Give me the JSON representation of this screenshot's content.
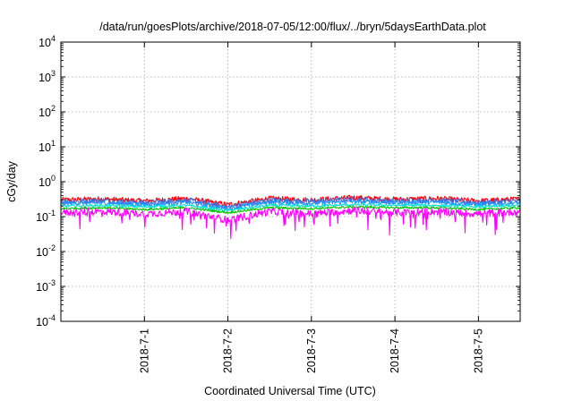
{
  "chart_data": {
    "type": "line",
    "title": "/data/run/goesPlots/archive/2018-07-05/12:00/flux/../bryn/5daysEarthData.plot",
    "xlabel": "Coordinated Universal Time (UTC)",
    "ylabel": "cGy/day",
    "yscale": "log",
    "ylim": [
      0.0001,
      10000
    ],
    "y_ticks": [
      {
        "value": 0.0001,
        "base": "10",
        "exp": "-4"
      },
      {
        "value": 0.001,
        "base": "10",
        "exp": "-3"
      },
      {
        "value": 0.01,
        "base": "10",
        "exp": "-2"
      },
      {
        "value": 0.1,
        "base": "10",
        "exp": "-1"
      },
      {
        "value": 1,
        "base": "10",
        "exp": "0"
      },
      {
        "value": 10,
        "base": "10",
        "exp": "1"
      },
      {
        "value": 100,
        "base": "10",
        "exp": "2"
      },
      {
        "value": 1000,
        "base": "10",
        "exp": "3"
      },
      {
        "value": 10000,
        "base": "10",
        "exp": "4"
      }
    ],
    "xlim": [
      "2018-06-30 00:00",
      "2018-07-05 12:00"
    ],
    "x_ticks": [
      {
        "date": "2018-07-01 00:00",
        "label": "2018-7-1"
      },
      {
        "date": "2018-07-02 00:00",
        "label": "2018-7-2"
      },
      {
        "date": "2018-07-03 00:00",
        "label": "2018-7-3"
      },
      {
        "date": "2018-07-04 00:00",
        "label": "2018-7-4"
      },
      {
        "date": "2018-07-05 00:00",
        "label": "2018-7-5"
      }
    ],
    "grid": true,
    "legend": "none",
    "series": [
      {
        "color": "#ff0000",
        "base": 0.34,
        "spread": 0.25,
        "x": [
          "2018-06-30 00:00",
          "2018-06-30 12:00",
          "2018-07-01 00:00",
          "2018-07-01 12:00",
          "2018-07-02 00:00",
          "2018-07-02 12:00",
          "2018-07-03 00:00",
          "2018-07-03 12:00",
          "2018-07-04 00:00",
          "2018-07-04 12:00",
          "2018-07-05 00:00",
          "2018-07-05 12:00"
        ],
        "y": [
          0.3,
          0.32,
          0.28,
          0.33,
          0.22,
          0.33,
          0.3,
          0.35,
          0.31,
          0.33,
          0.28,
          0.32
        ]
      },
      {
        "color": "#4a6cd4",
        "base": 0.3,
        "spread": 0.25,
        "x": [
          "2018-06-30 00:00",
          "2018-06-30 12:00",
          "2018-07-01 00:00",
          "2018-07-01 12:00",
          "2018-07-02 00:00",
          "2018-07-02 12:00",
          "2018-07-03 00:00",
          "2018-07-03 12:00",
          "2018-07-04 00:00",
          "2018-07-04 12:00",
          "2018-07-05 00:00",
          "2018-07-05 12:00"
        ],
        "y": [
          0.27,
          0.29,
          0.25,
          0.3,
          0.19,
          0.3,
          0.27,
          0.32,
          0.28,
          0.3,
          0.25,
          0.29
        ]
      },
      {
        "color": "#1e90ff",
        "base": 0.26,
        "spread": 0.2,
        "x": [
          "2018-06-30 00:00",
          "2018-06-30 12:00",
          "2018-07-01 00:00",
          "2018-07-01 12:00",
          "2018-07-02 00:00",
          "2018-07-02 12:00",
          "2018-07-03 00:00",
          "2018-07-03 12:00",
          "2018-07-04 00:00",
          "2018-07-04 12:00",
          "2018-07-05 00:00",
          "2018-07-05 12:00"
        ],
        "y": [
          0.24,
          0.25,
          0.22,
          0.26,
          0.17,
          0.26,
          0.24,
          0.27,
          0.25,
          0.26,
          0.22,
          0.25
        ]
      },
      {
        "color": "#00e0d0",
        "base": 0.21,
        "spread": 0.12,
        "x": [
          "2018-06-30 00:00",
          "2018-06-30 12:00",
          "2018-07-01 00:00",
          "2018-07-01 12:00",
          "2018-07-02 00:00",
          "2018-07-02 12:00",
          "2018-07-03 00:00",
          "2018-07-03 12:00",
          "2018-07-04 00:00",
          "2018-07-04 12:00",
          "2018-07-05 00:00",
          "2018-07-05 12:00"
        ],
        "y": [
          0.2,
          0.21,
          0.19,
          0.21,
          0.15,
          0.21,
          0.2,
          0.22,
          0.21,
          0.21,
          0.19,
          0.21
        ]
      },
      {
        "color": "#00c000",
        "base": 0.18,
        "spread": 0.1,
        "x": [
          "2018-06-30 00:00",
          "2018-06-30 12:00",
          "2018-07-01 00:00",
          "2018-07-01 12:00",
          "2018-07-02 00:00",
          "2018-07-02 12:00",
          "2018-07-03 00:00",
          "2018-07-03 12:00",
          "2018-07-04 00:00",
          "2018-07-04 12:00",
          "2018-07-05 00:00",
          "2018-07-05 12:00"
        ],
        "y": [
          0.17,
          0.18,
          0.16,
          0.18,
          0.13,
          0.18,
          0.17,
          0.19,
          0.18,
          0.18,
          0.16,
          0.18
        ]
      },
      {
        "color": "#ff00ff",
        "base": 0.15,
        "spread": 0.35,
        "x": [
          "2018-06-30 00:00",
          "2018-06-30 12:00",
          "2018-07-01 00:00",
          "2018-07-01 12:00",
          "2018-07-02 00:00",
          "2018-07-02 12:00",
          "2018-07-03 00:00",
          "2018-07-03 12:00",
          "2018-07-04 00:00",
          "2018-07-04 12:00",
          "2018-07-05 00:00",
          "2018-07-05 12:00"
        ],
        "y": [
          0.13,
          0.14,
          0.12,
          0.14,
          0.08,
          0.14,
          0.12,
          0.15,
          0.13,
          0.14,
          0.12,
          0.14
        ]
      }
    ]
  }
}
